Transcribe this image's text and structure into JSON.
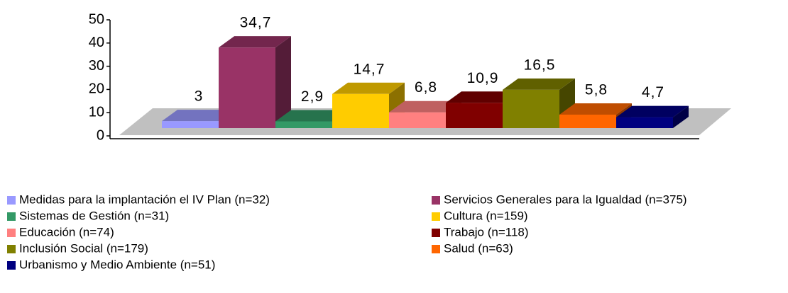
{
  "chart_data": {
    "type": "bar",
    "ylim": [
      0,
      50
    ],
    "yticks": [
      0,
      10,
      20,
      30,
      40,
      50
    ],
    "series": [
      {
        "name": "Medidas para la implantación el IV Plan (n=32)",
        "color": "#9999ff",
        "values": [
          3
        ],
        "value_labels": [
          "3"
        ]
      },
      {
        "name": "Servicios Generales para la Igualdad (n=375)",
        "color": "#993366",
        "values": [
          34.7
        ],
        "value_labels": [
          "34,7"
        ]
      },
      {
        "name": "Sistemas de Gestión (n=31)",
        "color": "#339966",
        "values": [
          2.9
        ],
        "value_labels": [
          "2,9"
        ]
      },
      {
        "name": "Cultura (n=159)",
        "color": "#ffcc00",
        "values": [
          14.7
        ],
        "value_labels": [
          "14,7"
        ]
      },
      {
        "name": "Educación (n=74)",
        "color": "#ff8080",
        "values": [
          6.8
        ],
        "value_labels": [
          "6,8"
        ]
      },
      {
        "name": "Trabajo (n=118)",
        "color": "#800000",
        "values": [
          10.9
        ],
        "value_labels": [
          "10,9"
        ]
      },
      {
        "name": "Inclusión Social (n=179)",
        "color": "#808000",
        "values": [
          16.5
        ],
        "value_labels": [
          "16,5"
        ]
      },
      {
        "name": "Salud (n=63)",
        "color": "#ff6600",
        "values": [
          5.8
        ],
        "value_labels": [
          "5,8"
        ]
      },
      {
        "name": "Urbanismo y Medio Ambiente (n=51)",
        "color": "#000080",
        "values": [
          4.7
        ],
        "value_labels": [
          "4,7"
        ]
      }
    ]
  }
}
